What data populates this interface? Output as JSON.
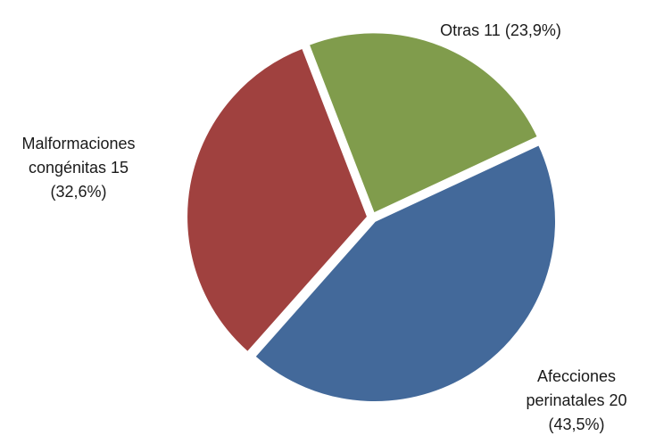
{
  "chart_data": {
    "type": "pie",
    "title": "",
    "slices": [
      {
        "category": "Afecciones perinatales",
        "value": 20,
        "percent": 43.5,
        "color": "#43699A",
        "label_lines": [
          "Afecciones",
          "perinatales 20",
          "(43,5%)"
        ]
      },
      {
        "category": "Malformaciones congénitas",
        "value": 15,
        "percent": 32.6,
        "color": "#A0413F",
        "label_lines": [
          "Malformaciones",
          "congénitas 15",
          "(32,6%)"
        ]
      },
      {
        "category": "Otras",
        "value": 11,
        "percent": 23.9,
        "color": "#809C4C",
        "label_lines": [
          "Otras 11 (23,9%)"
        ]
      }
    ]
  }
}
